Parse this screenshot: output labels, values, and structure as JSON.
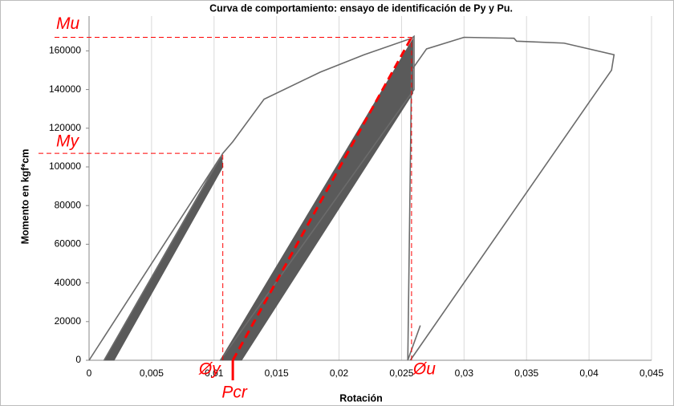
{
  "chart_data": {
    "type": "line",
    "title": "Curva de comportamiento: ensayo de identificación de Py y Pu.",
    "xlabel": "Rotación",
    "ylabel": "Momento en kgf*cm",
    "xlim": [
      0,
      0.045
    ],
    "ylim": [
      0,
      178000
    ],
    "xticks": [
      0,
      {
        "value": 0.005,
        "label": "0,005"
      },
      {
        "value": 0.01,
        "label": "0,01"
      },
      {
        "value": 0.015,
        "label": "0,015"
      },
      {
        "value": 0.02,
        "label": "0,02"
      },
      {
        "value": 0.025,
        "label": "0,025"
      },
      {
        "value": 0.03,
        "label": "0,03"
      },
      {
        "value": 0.035,
        "label": "0,035"
      },
      {
        "value": 0.04,
        "label": "0,04"
      },
      {
        "value": 0.045,
        "label": "0,045"
      }
    ],
    "yticks": [
      0,
      20000,
      40000,
      60000,
      80000,
      100000,
      120000,
      140000,
      160000
    ],
    "grid": "x",
    "series": [
      {
        "color": "#6b6b6b",
        "x": [
          0,
          0.0105,
          0.0012,
          0.0107,
          0.0115,
          0.014,
          0.0185,
          0.022,
          0.0258,
          0.026,
          0.026,
          0.0105
        ],
        "values": [
          0,
          105000,
          0,
          107000,
          113000,
          135000,
          149000,
          158000,
          166500,
          167500,
          140000,
          0
        ]
      },
      {
        "color": "#6b6b6b",
        "x": [
          0.0255,
          0.0265
        ],
        "values": [
          0,
          18000
        ]
      },
      {
        "color": "#6b6b6b",
        "x": [
          0.0255,
          0.0258,
          0.027,
          0.03,
          0.034,
          0.0342,
          0.038,
          0.042,
          0.0418,
          0.0405,
          0.0257
        ],
        "values": [
          0,
          150000,
          161000,
          167000,
          166500,
          165000,
          164000,
          158000,
          150000,
          138000,
          0
        ]
      }
    ],
    "bands": [
      {
        "color": "#5a5a5a",
        "x": [
          0.0012,
          0.002,
          0.0107,
          0.0106
        ],
        "values": [
          0,
          0,
          100000,
          106000
        ]
      },
      {
        "color": "#5a5a5a",
        "x": [
          0.0105,
          0.0122,
          0.0259,
          0.0259
        ],
        "values": [
          0,
          0,
          138000,
          166000
        ]
      }
    ],
    "annotation_color": "#ff0000",
    "annotations": [
      {
        "text": "Mu",
        "y": 167000
      },
      {
        "text": "My",
        "y": 107000
      },
      {
        "text": "Øy",
        "x": 0.0107
      },
      {
        "text": "Øu",
        "x": 0.0258
      },
      {
        "text": "Pcr",
        "x": 0.0115
      }
    ]
  }
}
